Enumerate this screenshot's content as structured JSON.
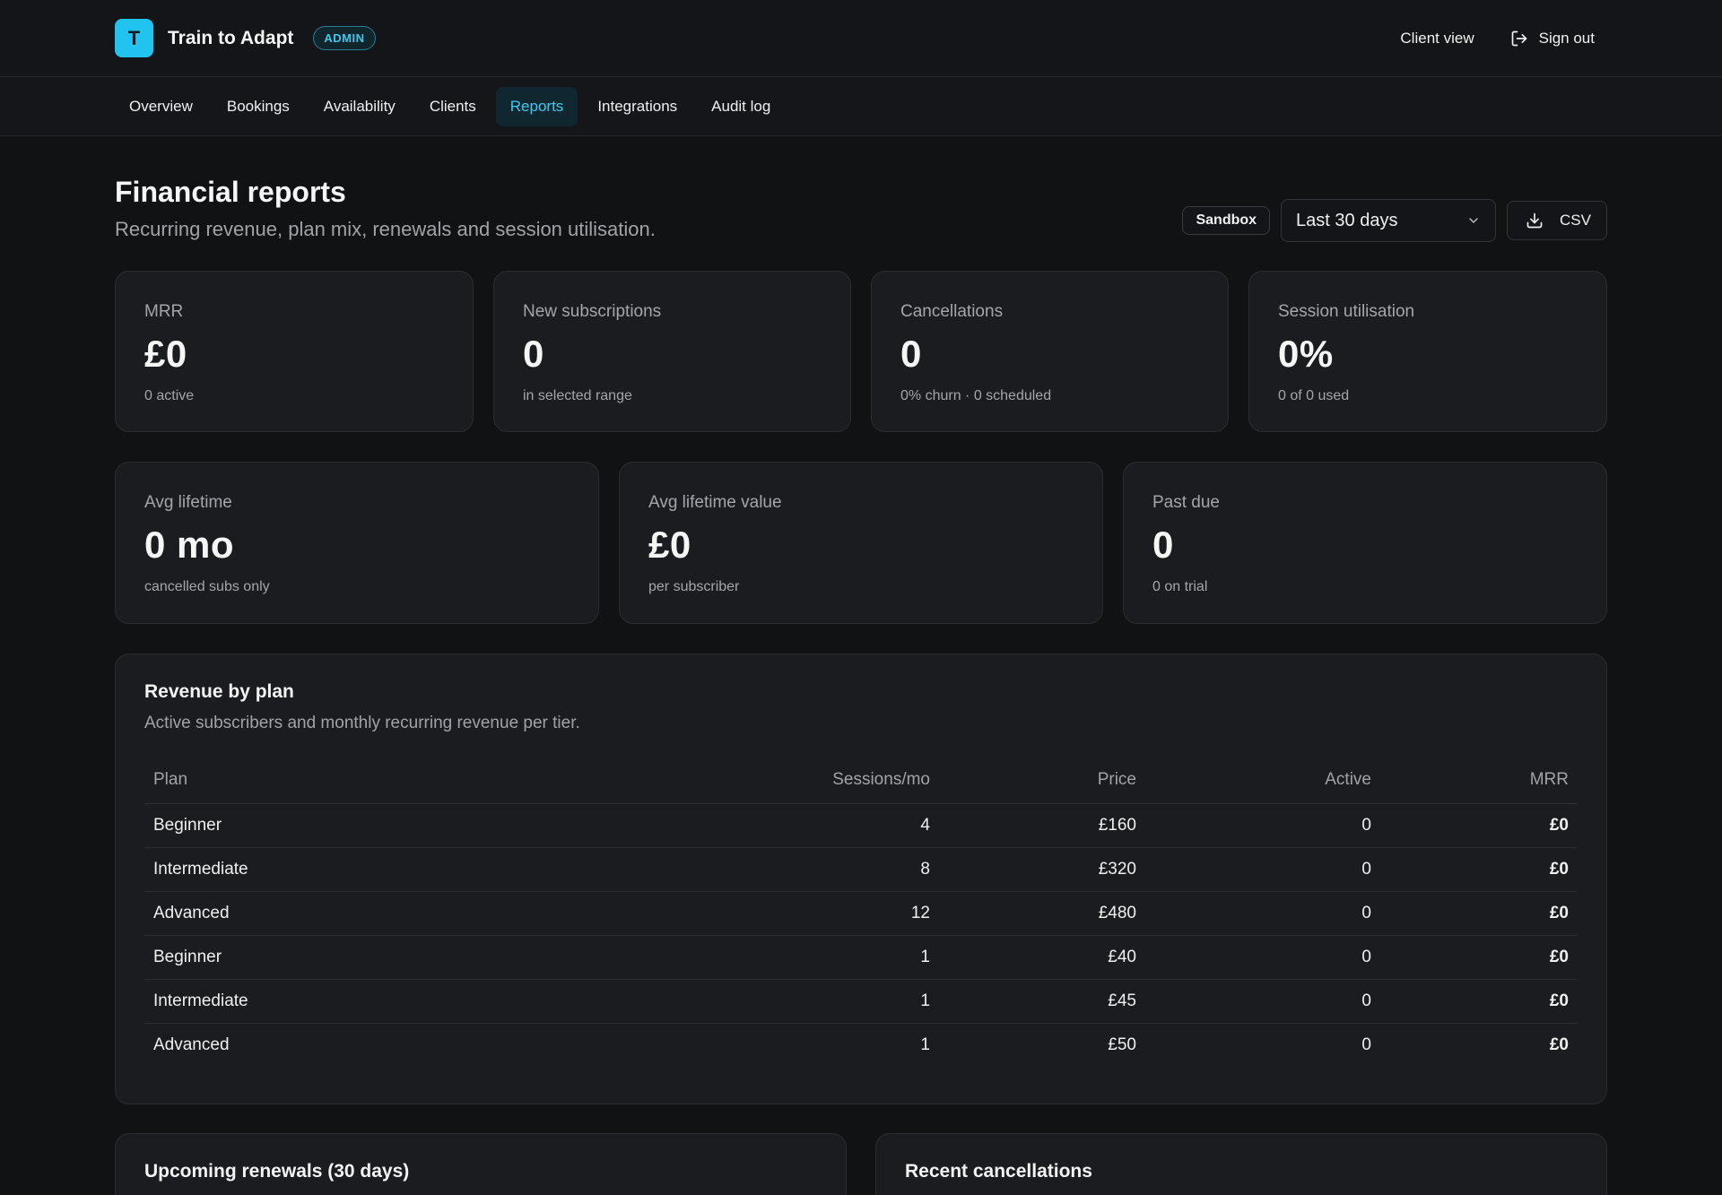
{
  "header": {
    "logo_letter": "T",
    "brand": "Train to Adapt",
    "badge": "ADMIN",
    "client_view": "Client view",
    "sign_out": "Sign out"
  },
  "nav": {
    "tabs": [
      {
        "label": "Overview"
      },
      {
        "label": "Bookings"
      },
      {
        "label": "Availability"
      },
      {
        "label": "Clients"
      },
      {
        "label": "Reports",
        "active": true
      },
      {
        "label": "Integrations"
      },
      {
        "label": "Audit log"
      }
    ]
  },
  "page": {
    "title": "Financial reports",
    "subtitle": "Recurring revenue, plan mix, renewals and session utilisation.",
    "sandbox": "Sandbox",
    "range": "Last 30 days",
    "csv": "CSV"
  },
  "stats_row1": [
    {
      "label": "MRR",
      "value": "£0",
      "note": "0 active"
    },
    {
      "label": "New subscriptions",
      "value": "0",
      "note": "in selected range"
    },
    {
      "label": "Cancellations",
      "value": "0",
      "note": "0% churn · 0 scheduled"
    },
    {
      "label": "Session utilisation",
      "value": "0%",
      "note": "0 of 0 used"
    }
  ],
  "stats_row2": [
    {
      "label": "Avg lifetime",
      "value": "0 mo",
      "note": "cancelled subs only"
    },
    {
      "label": "Avg lifetime value",
      "value": "£0",
      "note": "per subscriber"
    },
    {
      "label": "Past due",
      "value": "0",
      "note": "0 on trial"
    }
  ],
  "revenue": {
    "title": "Revenue by plan",
    "subtitle": "Active subscribers and monthly recurring revenue per tier.",
    "columns": {
      "plan": "Plan",
      "sessions": "Sessions/mo",
      "price": "Price",
      "active": "Active",
      "mrr": "MRR"
    },
    "rows": [
      {
        "plan": "Beginner",
        "sessions": "4",
        "price": "£160",
        "active": "0",
        "mrr": "£0"
      },
      {
        "plan": "Intermediate",
        "sessions": "8",
        "price": "£320",
        "active": "0",
        "mrr": "£0"
      },
      {
        "plan": "Advanced",
        "sessions": "12",
        "price": "£480",
        "active": "0",
        "mrr": "£0"
      },
      {
        "plan": "Beginner",
        "sessions": "1",
        "price": "£40",
        "active": "0",
        "mrr": "£0"
      },
      {
        "plan": "Intermediate",
        "sessions": "1",
        "price": "£45",
        "active": "0",
        "mrr": "£0"
      },
      {
        "plan": "Advanced",
        "sessions": "1",
        "price": "£50",
        "active": "0",
        "mrr": "£0"
      }
    ]
  },
  "renewals": {
    "title": "Upcoming renewals (30 days)"
  },
  "cancellations": {
    "title": "Recent cancellations"
  },
  "icons": {
    "sign_out": "sign-out-icon",
    "chevron": "chevron-down-icon",
    "download": "download-icon"
  },
  "colors": {
    "accent": "#20c4ee",
    "background": "#111214",
    "card": "#1b1c1f"
  }
}
